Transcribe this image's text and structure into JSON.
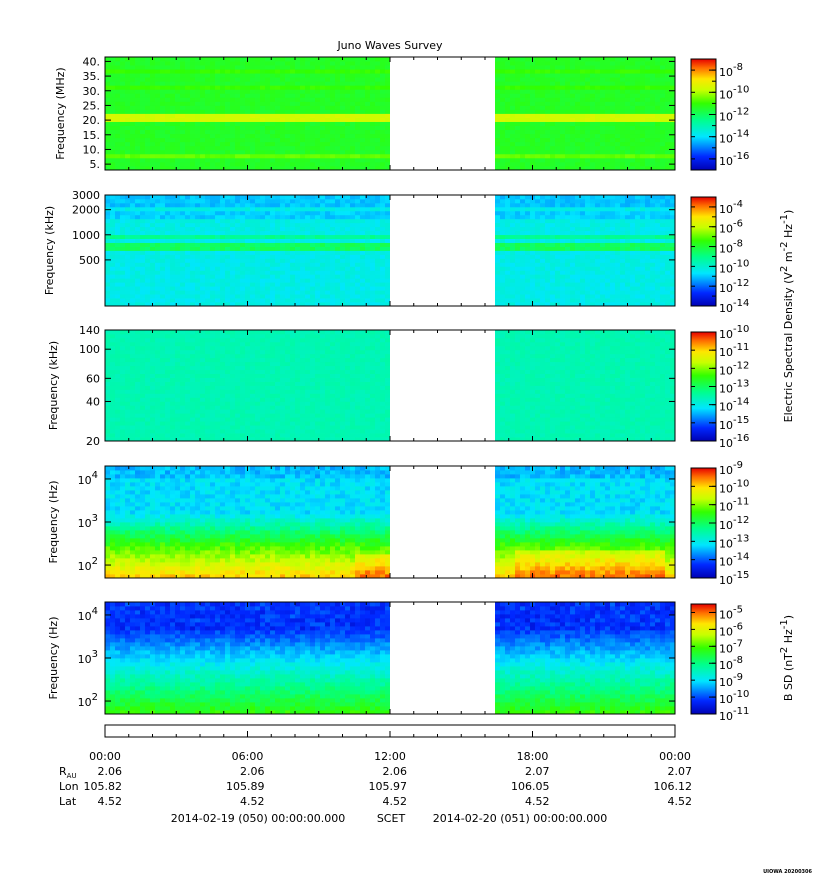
{
  "chart_data": {
    "type": "heatmap",
    "title": "Juno Waves Survey",
    "gap": {
      "start": "12:00",
      "end": "16:25"
    },
    "panels": [
      {
        "ylabel": "Frequency (MHz)",
        "yscale": "linear",
        "ylim": [
          3,
          41.5
        ],
        "yticks": [
          {
            "v": 5,
            "t": "5."
          },
          {
            "v": 10,
            "t": "10."
          },
          {
            "v": 15,
            "t": "15."
          },
          {
            "v": 20,
            "t": "20."
          },
          {
            "v": 25,
            "t": "25."
          },
          {
            "v": 30,
            "t": "30."
          },
          {
            "v": 35,
            "t": "35."
          },
          {
            "v": 40,
            "t": "40."
          }
        ],
        "cb": {
          "min": -17,
          "max": -7,
          "ticks": [
            -8,
            -10,
            -12,
            -14,
            -16
          ]
        }
      },
      {
        "ylabel": "Frequency (kHz)",
        "yscale": "log",
        "ylim": [
          140,
          3000
        ],
        "yticks": [
          {
            "v": 500,
            "t": "500"
          },
          {
            "v": 1000,
            "t": "1000"
          },
          {
            "v": 2000,
            "t": "2000"
          },
          {
            "v": 3000,
            "t": "3000"
          }
        ],
        "cb": {
          "min": -14,
          "max": -3,
          "ticks": [
            -4,
            -6,
            -8,
            -10,
            -12,
            -14
          ]
        }
      },
      {
        "ylabel": "Frequency (kHz)",
        "yscale": "log",
        "ylim": [
          20,
          140
        ],
        "yticks": [
          {
            "v": 20,
            "t": "20"
          },
          {
            "v": 40,
            "t": "40"
          },
          {
            "v": 60,
            "t": "60"
          },
          {
            "v": 100,
            "t": "100"
          },
          {
            "v": 140,
            "t": "140"
          }
        ],
        "cb": {
          "min": -16,
          "max": -10,
          "ticks": [
            -10,
            -11,
            -12,
            -13,
            -14,
            -15,
            -16
          ]
        }
      },
      {
        "ylabel": "Frequency (Hz)",
        "yscale": "log",
        "ylim": [
          50,
          20000
        ],
        "yticks": [
          {
            "v": 100,
            "sup": "2"
          },
          {
            "v": 1000,
            "sup": "3"
          },
          {
            "v": 10000,
            "sup": "4"
          }
        ],
        "cb": {
          "min": -15,
          "max": -9,
          "ticks": [
            -9,
            -10,
            -11,
            -12,
            -13,
            -14,
            -15
          ]
        }
      },
      {
        "ylabel": "Frequency (Hz)",
        "yscale": "log",
        "ylim": [
          50,
          20000
        ],
        "yticks": [
          {
            "v": 100,
            "sup": "2"
          },
          {
            "v": 1000,
            "sup": "3"
          },
          {
            "v": 10000,
            "sup": "4"
          }
        ],
        "cb": {
          "min": -11,
          "max": -4.5,
          "ticks": [
            -5,
            -6,
            -7,
            -8,
            -9,
            -10,
            -11
          ]
        }
      }
    ],
    "cb_labels": [
      {
        "text": "Electric Spectral Density (V",
        "sup1": "2",
        "mid": " m",
        "sup2": "-2",
        "mid2": " Hz",
        "sup3": "-1",
        "end": ")"
      },
      {
        "text": "B SD (nT",
        "sup1": "2",
        "mid": " Hz",
        "sup2": "-1",
        "end": ")"
      }
    ],
    "xticks": [
      "00:00",
      "06:00",
      "12:00",
      "18:00",
      "00:00"
    ],
    "ephemeris": [
      {
        "label": "R",
        "sub": "AU",
        "values": [
          "2.06",
          "2.06",
          "2.06",
          "2.07",
          "2.07"
        ]
      },
      {
        "label": "Lon",
        "values": [
          "105.82",
          "105.89",
          "105.97",
          "106.05",
          "106.12"
        ]
      },
      {
        "label": "Lat",
        "values": [
          "4.52",
          "4.52",
          "4.52",
          "4.52",
          "4.52"
        ]
      }
    ],
    "footer": {
      "start": "2014-02-19 (050) 00:00:00.000",
      "scet": "SCET",
      "end": "2014-02-20 (051) 00:00:00.000"
    },
    "credit": "UIOWA 20200306"
  }
}
